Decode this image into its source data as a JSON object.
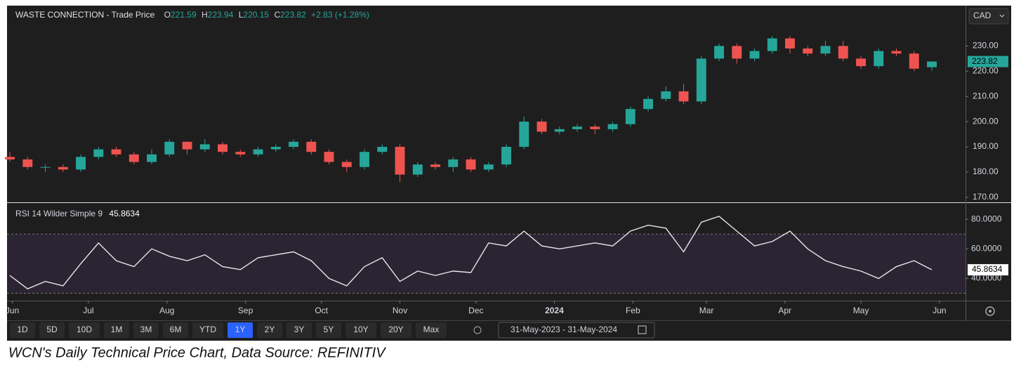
{
  "chart_data": {
    "type": "candlestick",
    "title": "WASTE CONNECTION - Trade Price",
    "ohlc_labels": [
      "O",
      "H",
      "L",
      "C"
    ],
    "change": "+2.83 (+1.28%)",
    "currency": "CAD",
    "x": [
      0,
      1,
      2,
      3,
      4,
      5,
      6,
      7,
      8,
      9,
      10,
      11,
      12,
      13,
      14,
      15,
      16,
      17,
      18,
      19,
      20,
      21,
      22,
      23,
      24,
      25,
      26,
      27,
      28,
      29,
      30,
      31,
      32,
      33,
      34,
      35,
      36,
      37,
      38,
      39,
      40,
      41,
      42,
      43,
      44,
      45,
      46,
      47,
      48,
      49,
      50,
      51,
      52
    ],
    "open": [
      186,
      185,
      182,
      182,
      181,
      186,
      189,
      187,
      184,
      187,
      192,
      189,
      191,
      188,
      187,
      189,
      190,
      192,
      188,
      184,
      182,
      188,
      190,
      179,
      183,
      182,
      185,
      181,
      183,
      190,
      200,
      196,
      197,
      198,
      197,
      199,
      205,
      209,
      212,
      208,
      225,
      230,
      225,
      228,
      233,
      229,
      227,
      230,
      225,
      222,
      228,
      227,
      221.59
    ],
    "high": [
      188,
      186,
      183,
      183,
      187,
      190,
      190,
      188,
      189,
      193,
      192,
      193,
      192,
      189,
      190,
      191,
      193,
      193,
      189,
      185,
      189,
      191,
      191,
      184,
      184,
      186,
      186,
      184,
      191,
      202,
      201,
      198,
      199,
      199,
      200,
      206,
      210,
      214,
      215,
      226,
      231,
      231,
      229,
      234,
      234,
      230,
      232,
      232,
      226,
      229,
      229,
      228,
      223.94
    ],
    "low": [
      184,
      181,
      180,
      180,
      180,
      185,
      186,
      183,
      183,
      186,
      187,
      188,
      187,
      186,
      186,
      188,
      189,
      187,
      183,
      180,
      181,
      187,
      176,
      178,
      181,
      180,
      180,
      180,
      182,
      189,
      195,
      195,
      196,
      195,
      196,
      198,
      204,
      208,
      207,
      207,
      224,
      223,
      224,
      227,
      227,
      226,
      226,
      224,
      221,
      221,
      226,
      220,
      220.15
    ],
    "close": [
      185,
      182,
      182,
      181,
      186,
      189,
      187,
      184,
      187,
      192,
      189,
      191,
      188,
      187,
      189,
      190,
      192,
      188,
      184,
      182,
      188,
      190,
      179,
      183,
      182,
      185,
      181,
      183,
      190,
      200,
      196,
      197,
      198,
      197,
      199,
      205,
      209,
      212,
      208,
      225,
      230,
      225,
      228,
      233,
      229,
      227,
      230,
      225,
      222,
      228,
      227,
      221,
      223.82
    ],
    "up_color": "#26a69a",
    "down_color": "#ef5350",
    "xlim": [
      -0.16,
      53.9
    ],
    "xticks": [
      {
        "value": 0.14,
        "label": "Jun"
      },
      {
        "value": 4.43,
        "label": "Jul"
      },
      {
        "value": 8.86,
        "label": "Aug"
      },
      {
        "value": 13.29,
        "label": "Sep"
      },
      {
        "value": 17.57,
        "label": "Oct"
      },
      {
        "value": 22,
        "label": "Nov"
      },
      {
        "value": 26.29,
        "label": "Dec"
      },
      {
        "value": 30.71,
        "label": "2024"
      },
      {
        "value": 35.14,
        "label": "Feb"
      },
      {
        "value": 39.29,
        "label": "Mar"
      },
      {
        "value": 43.71,
        "label": "Apr"
      },
      {
        "value": 48,
        "label": "May"
      },
      {
        "value": 52.43,
        "label": "Jun"
      }
    ],
    "ylim": [
      168,
      246
    ],
    "yticks": [
      {
        "value": 170,
        "label": "170.00"
      },
      {
        "value": 180,
        "label": "180.00"
      },
      {
        "value": 190,
        "label": "190.00"
      },
      {
        "value": 200,
        "label": "200.00"
      },
      {
        "value": 210,
        "label": "210.00"
      },
      {
        "value": 220,
        "label": "220.00"
      },
      {
        "value": 230,
        "label": "230.00"
      }
    ],
    "rsi": {
      "title": "RSI 14 Wilder Simple 9",
      "color": "#e6e6e6",
      "values": [
        42,
        33,
        38,
        35,
        50,
        64,
        52,
        48,
        60,
        55,
        52,
        56,
        48,
        46,
        54,
        56,
        58,
        52,
        40,
        35,
        48,
        54,
        38,
        45,
        42,
        45,
        44,
        64,
        62,
        72,
        62,
        60,
        62,
        64,
        62,
        72,
        76,
        74,
        58,
        78,
        82,
        72,
        62,
        65,
        72,
        60,
        52,
        48,
        45,
        40,
        48,
        52,
        45.8634
      ],
      "ylim": [
        25,
        91
      ],
      "yticks": [
        {
          "value": 40,
          "label": "40.0000"
        },
        {
          "value": 60,
          "label": "60.0000"
        },
        {
          "value": 80,
          "label": "80.0000"
        }
      ],
      "bands": [
        30,
        70
      ]
    }
  },
  "toolbar": {
    "ranges": [
      "1D",
      "5D",
      "10D",
      "1M",
      "3M",
      "6M",
      "YTD",
      "1Y",
      "2Y",
      "3Y",
      "5Y",
      "10Y",
      "20Y",
      "Max"
    ],
    "selected": 7,
    "date_range": "31-May-2023 - 31-May-2024"
  },
  "caption": "WCN's Daily Technical Price Chart, Data Source: REFINITIV"
}
